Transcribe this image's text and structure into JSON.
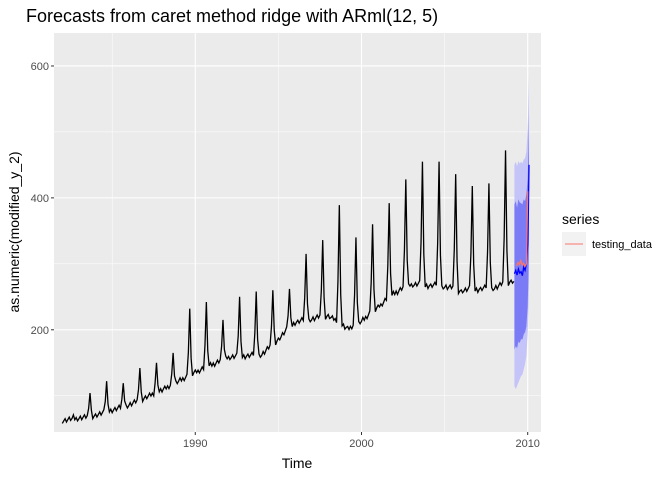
{
  "chart_data": {
    "type": "line",
    "title": "Forecasts from caret method ridge with ARml(12,  5)",
    "xlabel": "Time",
    "ylabel": "as.numeric(modified_y_2)",
    "xlim": [
      1981.5,
      2010.8
    ],
    "ylim": [
      45,
      650
    ],
    "x_ticks": [
      1990,
      2000,
      2010
    ],
    "x_tick_labels": [
      "1990",
      "2000",
      "2010"
    ],
    "y_ticks": [
      200,
      400,
      600
    ],
    "y_tick_labels": [
      "200",
      "400",
      "600"
    ],
    "grid": true,
    "legend_title": "series",
    "legend_position": "right",
    "legend_entries": [
      {
        "label": "testing_data",
        "color": "#F8766D"
      }
    ],
    "colors": {
      "history": "#000000",
      "testing": "#F8766D",
      "forecast": "#0000FF",
      "interval80": "#7B7BF5",
      "interval95": "#C4C4F8",
      "panel": "#EBEBEB",
      "grid": "#FFFFFF"
    },
    "history": {
      "start": 1982.0,
      "frequency": 12,
      "baseline_anchors": [
        [
          1982.0,
          62
        ],
        [
          1984.0,
          70
        ],
        [
          1986.0,
          85
        ],
        [
          1988.0,
          108
        ],
        [
          1990.0,
          135
        ],
        [
          1992.0,
          158
        ],
        [
          1994.0,
          162
        ],
        [
          1995.0,
          185
        ],
        [
          1996.0,
          210
        ],
        [
          1998.0,
          220
        ],
        [
          1999.2,
          200
        ],
        [
          2000.0,
          212
        ],
        [
          2002.0,
          255
        ],
        [
          2003.0,
          268
        ],
        [
          2005.0,
          265
        ],
        [
          2006.0,
          258
        ],
        [
          2008.0,
          262
        ],
        [
          2009.0,
          272
        ]
      ],
      "annual_peaks": [
        {
          "year": 1983,
          "value": 104
        },
        {
          "year": 1984,
          "value": 122
        },
        {
          "year": 1985,
          "value": 119
        },
        {
          "year": 1986,
          "value": 142
        },
        {
          "year": 1987,
          "value": 150
        },
        {
          "year": 1988,
          "value": 165
        },
        {
          "year": 1989,
          "value": 232
        },
        {
          "year": 1990,
          "value": 242
        },
        {
          "year": 1991,
          "value": 215
        },
        {
          "year": 1992,
          "value": 250
        },
        {
          "year": 1993,
          "value": 258
        },
        {
          "year": 1994,
          "value": 260
        },
        {
          "year": 1995,
          "value": 262
        },
        {
          "year": 1996,
          "value": 315
        },
        {
          "year": 1997,
          "value": 336
        },
        {
          "year": 1998,
          "value": 389
        },
        {
          "year": 1999,
          "value": 340
        },
        {
          "year": 2000,
          "value": 360
        },
        {
          "year": 2001,
          "value": 392
        },
        {
          "year": 2002,
          "value": 428
        },
        {
          "year": 2003,
          "value": 455
        },
        {
          "year": 2004,
          "value": 455
        },
        {
          "year": 2005,
          "value": 436
        },
        {
          "year": 2006,
          "value": 418
        },
        {
          "year": 2007,
          "value": 422
        },
        {
          "year": 2008,
          "value": 472
        },
        {
          "year": 2009,
          "value": 456
        }
      ]
    },
    "forecast": {
      "x": [
        2009.2,
        2009.28,
        2009.36,
        2009.44,
        2009.52,
        2009.6,
        2009.68,
        2009.76,
        2009.84,
        2009.92,
        2010.0,
        2010.04,
        2010.08
      ],
      "mean": [
        285,
        290,
        283,
        292,
        286,
        288,
        282,
        295,
        290,
        300,
        330,
        380,
        450
      ],
      "lo80": [
        170,
        175,
        172,
        182,
        180,
        186,
        185,
        193,
        196,
        205,
        235,
        280,
        340
      ],
      "hi80": [
        390,
        395,
        385,
        398,
        393,
        392,
        390,
        398,
        395,
        405,
        430,
        470,
        525
      ],
      "lo95": [
        115,
        110,
        115,
        120,
        125,
        130,
        132,
        140,
        148,
        160,
        195,
        230,
        270
      ],
      "hi95": [
        450,
        455,
        448,
        456,
        452,
        455,
        452,
        458,
        460,
        470,
        505,
        545,
        585
      ]
    },
    "testing_data": {
      "x": [
        2009.33,
        2009.42,
        2009.5,
        2009.58,
        2009.67,
        2009.75,
        2009.83,
        2009.92,
        2010.0
      ],
      "y": [
        297,
        302,
        299,
        305,
        298,
        301,
        296,
        300,
        410
      ]
    }
  }
}
